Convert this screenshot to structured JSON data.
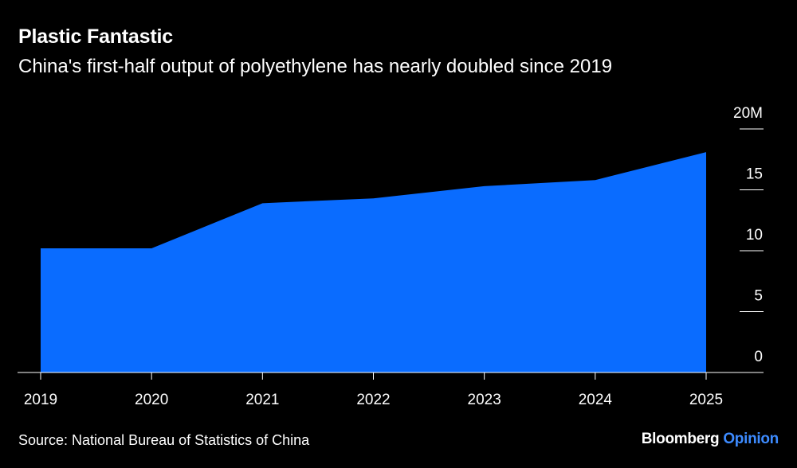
{
  "header": {
    "title": "Plastic Fantastic",
    "subtitle": "China's first-half output of polyethylene has nearly doubled since 2019"
  },
  "footer": {
    "source": "Source: National Bureau of Statistics of China",
    "brand_primary": "Bloomberg",
    "brand_secondary": "Opinion"
  },
  "colors": {
    "background": "#000000",
    "area": "#0a6cff",
    "text": "#ffffff",
    "brand_accent": "#3d8bff"
  },
  "chart_data": {
    "type": "area",
    "x": [
      "2019",
      "2020",
      "2021",
      "2022",
      "2023",
      "2024",
      "2025"
    ],
    "series": [
      {
        "values": [
          10.2,
          10.2,
          13.9,
          14.3,
          15.3,
          15.8,
          18.1
        ]
      }
    ],
    "ylim": [
      0,
      20
    ],
    "yticks": [
      {
        "value": 0,
        "label": "0"
      },
      {
        "value": 5,
        "label": "5"
      },
      {
        "value": 10,
        "label": "10"
      },
      {
        "value": 15,
        "label": "15"
      },
      {
        "value": 20,
        "label": "20M"
      }
    ],
    "y_axis_side": "right",
    "grid": false
  }
}
